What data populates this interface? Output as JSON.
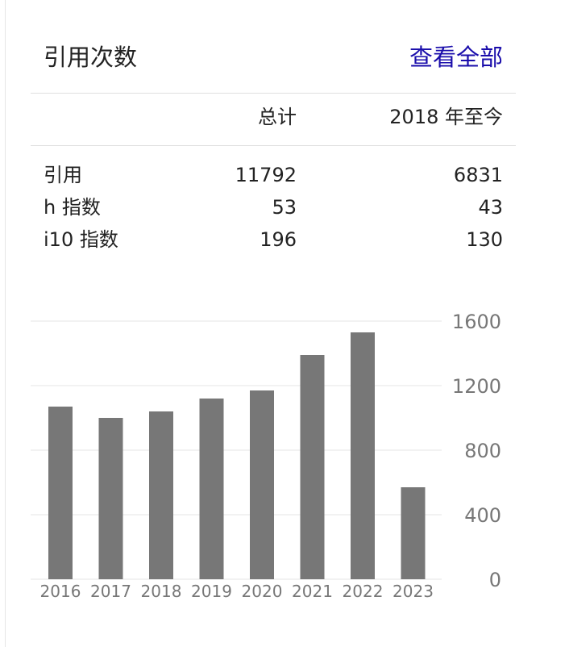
{
  "header": {
    "title": "引用次数",
    "view_all": "查看全部"
  },
  "table": {
    "col_total": "总计",
    "col_since": "2018 年至今",
    "rows": [
      {
        "label": "引用",
        "total": "11792",
        "since": "6831"
      },
      {
        "label": "h 指数",
        "total": "53",
        "since": "43"
      },
      {
        "label": "i10 指数",
        "total": "196",
        "since": "130"
      }
    ]
  },
  "colors": {
    "bar": "#777777",
    "grid": "#e6e6e6",
    "link": "#1a0dab"
  },
  "chart_data": {
    "type": "bar",
    "categories": [
      "2016",
      "2017",
      "2018",
      "2019",
      "2020",
      "2021",
      "2022",
      "2023"
    ],
    "values": [
      1070,
      1000,
      1040,
      1120,
      1170,
      1390,
      1530,
      570
    ],
    "yticks": [
      0,
      400,
      800,
      1200,
      1600
    ],
    "ylim": [
      0,
      1600
    ],
    "title": "",
    "xlabel": "",
    "ylabel": "",
    "grid": true,
    "y_axis_side": "right"
  }
}
